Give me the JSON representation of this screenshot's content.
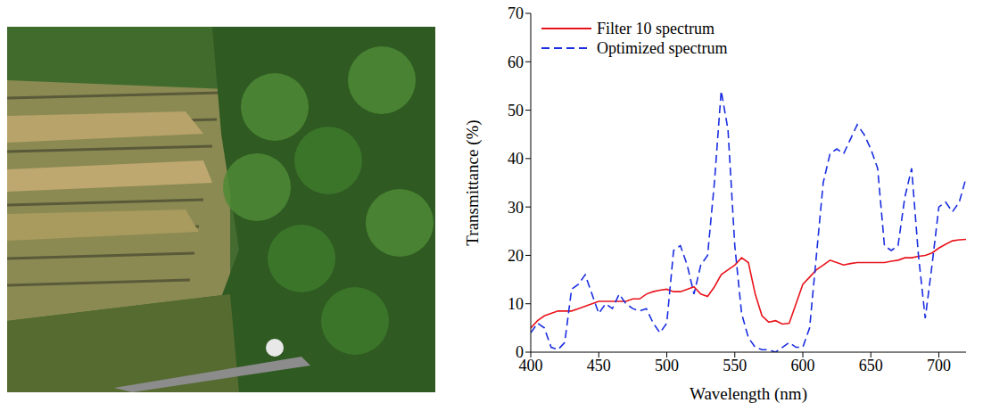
{
  "chart_data": {
    "type": "line",
    "x_label": "Wavelength (nm)",
    "y_label": "Transmittance (%)",
    "x": [
      400,
      405,
      410,
      415,
      420,
      425,
      430,
      435,
      440,
      445,
      450,
      455,
      460,
      465,
      470,
      475,
      480,
      485,
      490,
      495,
      500,
      505,
      510,
      515,
      520,
      525,
      530,
      535,
      540,
      545,
      550,
      555,
      560,
      565,
      570,
      575,
      580,
      585,
      590,
      595,
      600,
      605,
      610,
      615,
      620,
      625,
      630,
      635,
      640,
      645,
      650,
      655,
      660,
      665,
      670,
      675,
      680,
      685,
      690,
      695,
      700,
      705,
      710,
      715,
      720
    ],
    "series": [
      {
        "name": "Filter 10 spectrum",
        "color": "#e8141c",
        "line_style": "solid",
        "values": [
          5,
          6.5,
          7.5,
          8,
          8.5,
          8.5,
          8.5,
          9,
          9.5,
          10,
          10.5,
          10.5,
          10.5,
          10.5,
          10.5,
          11,
          11,
          12,
          12.5,
          12.8,
          13,
          12.5,
          12.5,
          13,
          13.5,
          12,
          11.5,
          13.5,
          16,
          17,
          18,
          19.5,
          18.5,
          12,
          7.5,
          6.2,
          6.5,
          5.8,
          6,
          10,
          14,
          15.5,
          17,
          18,
          19,
          18.5,
          18,
          18.3,
          18.5,
          18.5,
          18.5,
          18.5,
          18.5,
          18.8,
          19,
          19.5,
          19.5,
          19.8,
          20,
          20.5,
          21.5,
          22.3,
          23,
          23.2,
          23.3
        ]
      },
      {
        "name": "Optimized spectrum",
        "color": "#1a2ee0",
        "line_style": "dashed",
        "values": [
          4,
          6,
          5,
          1,
          0.5,
          2,
          13,
          14,
          16,
          12,
          8,
          10,
          9,
          12,
          10,
          9,
          8.5,
          9,
          6,
          4,
          6,
          21,
          22,
          18,
          12,
          18,
          20,
          35,
          54,
          46,
          22,
          8,
          3,
          1,
          0.5,
          0.5,
          0,
          1,
          2,
          1,
          1,
          5,
          20,
          35,
          41,
          42,
          41,
          44,
          47,
          45,
          42,
          38,
          22,
          21,
          22,
          32,
          38,
          20,
          7,
          18,
          30,
          31,
          29,
          31,
          36
        ]
      }
    ],
    "xlim": [
      400,
      720
    ],
    "xticks": [
      400,
      450,
      500,
      550,
      600,
      650,
      700
    ],
    "ylim": [
      0,
      70
    ],
    "yticks": [
      0,
      10,
      20,
      30,
      40,
      50,
      60,
      70
    ],
    "grid": false,
    "legend": "upper left"
  }
}
